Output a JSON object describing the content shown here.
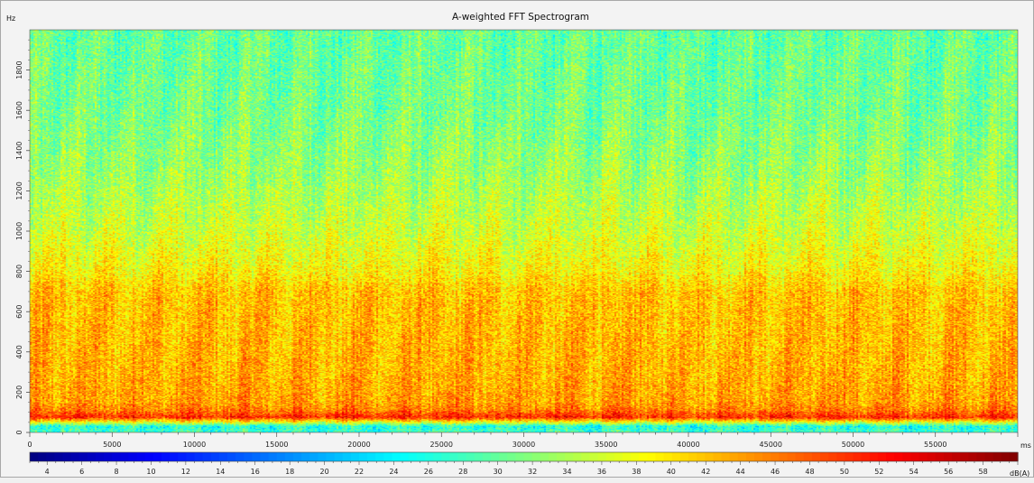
{
  "chart_data": {
    "type": "heatmap",
    "title": "A-weighted FFT Spectrogram",
    "y_unit": "Hz",
    "x_unit": "ms",
    "colorbar_unit": "dB(A)",
    "xlim": [
      0,
      60000
    ],
    "ylim": [
      0,
      2000
    ],
    "x_ticks": [
      0,
      5000,
      10000,
      15000,
      20000,
      25000,
      30000,
      35000,
      40000,
      45000,
      50000,
      55000
    ],
    "y_ticks": [
      0,
      200,
      400,
      600,
      800,
      1000,
      1200,
      1400,
      1600,
      1800
    ],
    "colorbar_range": [
      3,
      60
    ],
    "colorbar_ticks": [
      4,
      6,
      8,
      10,
      12,
      14,
      16,
      18,
      20,
      22,
      24,
      26,
      28,
      30,
      32,
      34,
      36,
      38,
      40,
      42,
      44,
      46,
      48,
      50,
      52,
      54,
      56,
      58
    ],
    "colormap": [
      "#00007f",
      "#0000ff",
      "#007fff",
      "#00ffff",
      "#7fff7f",
      "#ffff00",
      "#ff7f00",
      "#ff0000",
      "#7f0000"
    ],
    "approx_level_profile_dBA": [
      {
        "hz": 0,
        "level": 28
      },
      {
        "hz": 30,
        "level": 26
      },
      {
        "hz": 75,
        "level": 51
      },
      {
        "hz": 110,
        "level": 46
      },
      {
        "hz": 150,
        "level": 44
      },
      {
        "hz": 300,
        "level": 43
      },
      {
        "hz": 500,
        "level": 42.5
      },
      {
        "hz": 700,
        "level": 42
      },
      {
        "hz": 800,
        "level": 39
      },
      {
        "hz": 1000,
        "level": 36
      },
      {
        "hz": 1300,
        "level": 33
      },
      {
        "hz": 1600,
        "level": 31
      },
      {
        "hz": 2000,
        "level": 30
      }
    ]
  }
}
